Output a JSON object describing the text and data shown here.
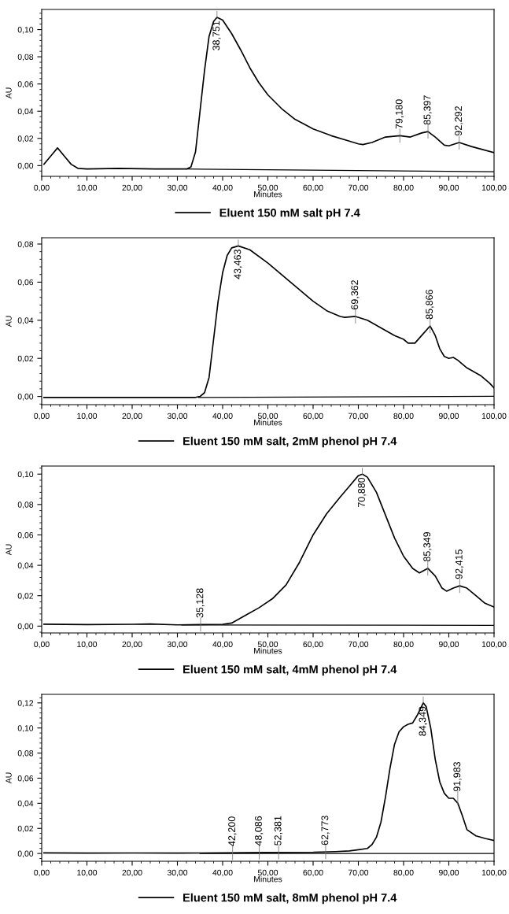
{
  "chart_data": [
    {
      "type": "line",
      "xlabel": "Minutes",
      "ylabel": "AU",
      "legend": "bottom",
      "grid": false,
      "marker": "none",
      "line_style": "solid",
      "xlim": [
        0,
        100
      ],
      "ylim": [
        -0.0079,
        0.1148
      ],
      "xticks": [
        {
          "value": 0,
          "label": "0,00"
        },
        {
          "value": 10,
          "label": "10,00"
        },
        {
          "value": 20,
          "label": "20,00"
        },
        {
          "value": 30,
          "label": "30,00"
        },
        {
          "value": 40,
          "label": "40,00"
        },
        {
          "value": 50,
          "label": "50,00"
        },
        {
          "value": 60,
          "label": "60,00"
        },
        {
          "value": 70,
          "label": "70,00"
        },
        {
          "value": 80,
          "label": "80,00"
        },
        {
          "value": 90,
          "label": "90,00"
        },
        {
          "value": 100,
          "label": "100,00"
        }
      ],
      "yticks": [
        {
          "value": 0,
          "label": "0,00"
        },
        {
          "value": 0.02,
          "label": "0,02"
        },
        {
          "value": 0.04,
          "label": "0,04"
        },
        {
          "value": 0.06,
          "label": "0,06"
        },
        {
          "value": 0.08,
          "label": "0,08"
        },
        {
          "value": 0.1,
          "label": "0,10"
        }
      ],
      "series": [
        {
          "name": "Eluent 150 mM salt pH 7.4",
          "color": "#000000",
          "x": [
            0.5,
            2,
            3.5,
            5,
            6.5,
            8,
            10,
            17,
            25,
            32,
            33,
            34,
            35,
            36,
            37,
            38,
            38.75,
            40,
            42,
            44,
            46,
            48,
            50,
            53,
            56,
            60,
            64,
            68,
            70,
            71,
            73,
            76,
            79.18,
            81.5,
            84,
            85.4,
            87,
            89,
            90,
            92.3,
            95,
            100
          ],
          "values": [
            0.001,
            0.007,
            0.013,
            0.007,
            0.001,
            -0.002,
            -0.0025,
            -0.002,
            -0.0025,
            -0.0025,
            -0.001,
            0.01,
            0.04,
            0.07,
            0.095,
            0.106,
            0.109,
            0.107,
            0.097,
            0.085,
            0.072,
            0.061,
            0.052,
            0.042,
            0.034,
            0.027,
            0.022,
            0.018,
            0.016,
            0.0155,
            0.017,
            0.021,
            0.022,
            0.021,
            0.024,
            0.025,
            0.021,
            0.015,
            0.0145,
            0.017,
            0.014,
            0.0095
          ]
        },
        {
          "color": "#000000",
          "x": [
            32,
            100
          ],
          "values": [
            -0.0025,
            -0.0045
          ]
        }
      ],
      "annotations": [
        {
          "text": "38,751",
          "x": 38.751,
          "y": 0.109
        },
        {
          "text": "79,180",
          "x": 79.18,
          "y": 0.022
        },
        {
          "text": "85,397",
          "x": 85.397,
          "y": 0.025
        },
        {
          "text": "92,292",
          "x": 92.292,
          "y": 0.017
        }
      ]
    },
    {
      "type": "line",
      "xlabel": "Minutes",
      "ylabel": "AU",
      "legend": "bottom",
      "grid": false,
      "marker": "none",
      "line_style": "solid",
      "xlim": [
        0,
        100
      ],
      "ylim": [
        -0.0043,
        0.0833
      ],
      "xticks": [
        {
          "value": 0,
          "label": "0,00"
        },
        {
          "value": 10,
          "label": "10,00"
        },
        {
          "value": 20,
          "label": "20,00"
        },
        {
          "value": 30,
          "label": "30,00"
        },
        {
          "value": 40,
          "label": "40,00"
        },
        {
          "value": 50,
          "label": "50,00"
        },
        {
          "value": 60,
          "label": "60,00"
        },
        {
          "value": 70,
          "label": "70,00"
        },
        {
          "value": 80,
          "label": "80,00"
        },
        {
          "value": 90,
          "label": "90,00"
        },
        {
          "value": 100,
          "label": "100,00"
        }
      ],
      "yticks": [
        {
          "value": 0,
          "label": "0,00"
        },
        {
          "value": 0.02,
          "label": "0,02"
        },
        {
          "value": 0.04,
          "label": "0,04"
        },
        {
          "value": 0.06,
          "label": "0,06"
        },
        {
          "value": 0.08,
          "label": "0,08"
        }
      ],
      "series": [
        {
          "name": "Eluent 150 mM salt, 2mM phenol pH 7.4",
          "color": "#000000",
          "x": [
            0.5,
            20,
            34,
            35,
            36,
            37,
            38,
            39,
            40,
            41,
            42,
            43.46,
            46,
            50,
            55,
            60,
            63,
            66,
            67,
            69.36,
            72,
            75,
            78,
            80,
            81,
            82.5,
            84,
            85.87,
            87,
            88,
            89,
            90,
            91,
            92,
            94,
            97,
            99,
            100
          ],
          "values": [
            -0.0005,
            -0.0005,
            -0.0005,
            0.0,
            0.002,
            0.01,
            0.03,
            0.05,
            0.065,
            0.074,
            0.078,
            0.079,
            0.077,
            0.07,
            0.06,
            0.05,
            0.045,
            0.042,
            0.0415,
            0.042,
            0.04,
            0.036,
            0.032,
            0.03,
            0.028,
            0.028,
            0.032,
            0.037,
            0.032,
            0.025,
            0.021,
            0.02,
            0.0205,
            0.019,
            0.015,
            0.011,
            0.007,
            0.0045
          ]
        },
        {
          "color": "#000000",
          "x": [
            34.7,
            100
          ],
          "values": [
            -0.0005,
            0.0001
          ]
        }
      ],
      "annotations": [
        {
          "text": "43,463",
          "x": 43.463,
          "y": 0.079
        },
        {
          "text": "69,362",
          "x": 69.362,
          "y": 0.042
        },
        {
          "text": "85,866",
          "x": 85.866,
          "y": 0.037
        }
      ]
    },
    {
      "type": "line",
      "xlabel": "Minutes",
      "ylabel": "AU",
      "legend": "bottom",
      "grid": false,
      "marker": "none",
      "line_style": "solid",
      "xlim": [
        0,
        100
      ],
      "ylim": [
        -0.0045,
        0.1053
      ],
      "xticks": [
        {
          "value": 0,
          "label": "0,00"
        },
        {
          "value": 10,
          "label": "10,00"
        },
        {
          "value": 20,
          "label": "20,00"
        },
        {
          "value": 30,
          "label": "30,00"
        },
        {
          "value": 40,
          "label": "40,00"
        },
        {
          "value": 50,
          "label": "50,00"
        },
        {
          "value": 60,
          "label": "60,00"
        },
        {
          "value": 70,
          "label": "70,00"
        },
        {
          "value": 80,
          "label": "80,00"
        },
        {
          "value": 90,
          "label": "90,00"
        },
        {
          "value": 100,
          "label": "100,00"
        }
      ],
      "yticks": [
        {
          "value": 0,
          "label": "0,00"
        },
        {
          "value": 0.02,
          "label": "0,02"
        },
        {
          "value": 0.04,
          "label": "0,04"
        },
        {
          "value": 0.06,
          "label": "0,06"
        },
        {
          "value": 0.08,
          "label": "0,08"
        },
        {
          "value": 0.1,
          "label": "0,10"
        }
      ],
      "series": [
        {
          "name": "Eluent 150 mM salt, 4mM phenol pH 7.4",
          "color": "#000000",
          "x": [
            0.5,
            10,
            20,
            24,
            30,
            35,
            40,
            42,
            45,
            48,
            51,
            54,
            57,
            60,
            63,
            66,
            68,
            70,
            70.88,
            72,
            74,
            76,
            78,
            80,
            82,
            83.5,
            85.35,
            87,
            88.5,
            89.5,
            91,
            92.4,
            94,
            96,
            98,
            100
          ],
          "values": [
            0.0013,
            0.001,
            0.0012,
            0.0014,
            0.0008,
            0.001,
            0.0012,
            0.002,
            0.007,
            0.012,
            0.018,
            0.027,
            0.042,
            0.06,
            0.074,
            0.085,
            0.092,
            0.099,
            0.1,
            0.098,
            0.088,
            0.073,
            0.058,
            0.046,
            0.038,
            0.035,
            0.038,
            0.033,
            0.025,
            0.023,
            0.025,
            0.0265,
            0.025,
            0.02,
            0.015,
            0.0125
          ]
        },
        {
          "color": "#000000",
          "x": [
            31,
            100
          ],
          "values": [
            0.0008,
            0.0005
          ]
        }
      ],
      "annotations": [
        {
          "text": "35,128",
          "x": 35.128,
          "y": 0.001
        },
        {
          "text": "70,880",
          "x": 70.88,
          "y": 0.1
        },
        {
          "text": "85,349",
          "x": 85.349,
          "y": 0.038
        },
        {
          "text": "92,415",
          "x": 92.415,
          "y": 0.0265
        }
      ]
    },
    {
      "type": "line",
      "xlabel": "Minutes",
      "ylabel": "AU",
      "legend": "bottom",
      "grid": false,
      "marker": "none",
      "line_style": "solid",
      "xlim": [
        0,
        100
      ],
      "ylim": [
        -0.0062,
        0.1268
      ],
      "xticks": [
        {
          "value": 0,
          "label": "0,00"
        },
        {
          "value": 10,
          "label": "10,00"
        },
        {
          "value": 20,
          "label": "20,00"
        },
        {
          "value": 30,
          "label": "30,00"
        },
        {
          "value": 40,
          "label": "40,00"
        },
        {
          "value": 50,
          "label": "50,00"
        },
        {
          "value": 60,
          "label": "60,00"
        },
        {
          "value": 70,
          "label": "70,00"
        },
        {
          "value": 80,
          "label": "80,00"
        },
        {
          "value": 90,
          "label": "90,00"
        },
        {
          "value": 100,
          "label": "100,00"
        }
      ],
      "yticks": [
        {
          "value": 0,
          "label": "0,00"
        },
        {
          "value": 0.02,
          "label": "0,02"
        },
        {
          "value": 0.04,
          "label": "0,04"
        },
        {
          "value": 0.06,
          "label": "0,06"
        },
        {
          "value": 0.08,
          "label": "0,08"
        },
        {
          "value": 0.1,
          "label": "0,10"
        },
        {
          "value": 0.12,
          "label": "0,12"
        }
      ],
      "series": [
        {
          "name": "Eluent 150 mM salt, 8mM phenol pH 7.4",
          "color": "#000000",
          "x": [
            0.5,
            10,
            20,
            30,
            40,
            50,
            60,
            65,
            68,
            70,
            72,
            73,
            74,
            75,
            76,
            77,
            78,
            79,
            80,
            81,
            82,
            83,
            84.35,
            85,
            86,
            87,
            88,
            89,
            90,
            91,
            92,
            93,
            94,
            96,
            98,
            100
          ],
          "values": [
            0.0005,
            0.0003,
            0.0004,
            0.0003,
            0.0005,
            0.0008,
            0.001,
            0.0015,
            0.002,
            0.003,
            0.004,
            0.007,
            0.013,
            0.025,
            0.045,
            0.068,
            0.087,
            0.097,
            0.101,
            0.103,
            0.104,
            0.11,
            0.12,
            0.117,
            0.1,
            0.075,
            0.057,
            0.048,
            0.044,
            0.044,
            0.04,
            0.03,
            0.019,
            0.014,
            0.012,
            0.0104
          ]
        },
        {
          "color": "#000000",
          "x": [
            35,
            100
          ],
          "values": [
            0.0,
            0.0
          ]
        }
      ],
      "annotations": [
        {
          "text": "42,200",
          "x": 42.2,
          "y": 0.0005
        },
        {
          "text": "48,086",
          "x": 48.086,
          "y": 0.0008
        },
        {
          "text": "52,381",
          "x": 52.381,
          "y": 0.0009
        },
        {
          "text": "62,773",
          "x": 62.773,
          "y": 0.0012
        },
        {
          "text": "84,349",
          "x": 84.349,
          "y": 0.12
        },
        {
          "text": "91,983",
          "x": 91.983,
          "y": 0.044
        }
      ]
    }
  ]
}
